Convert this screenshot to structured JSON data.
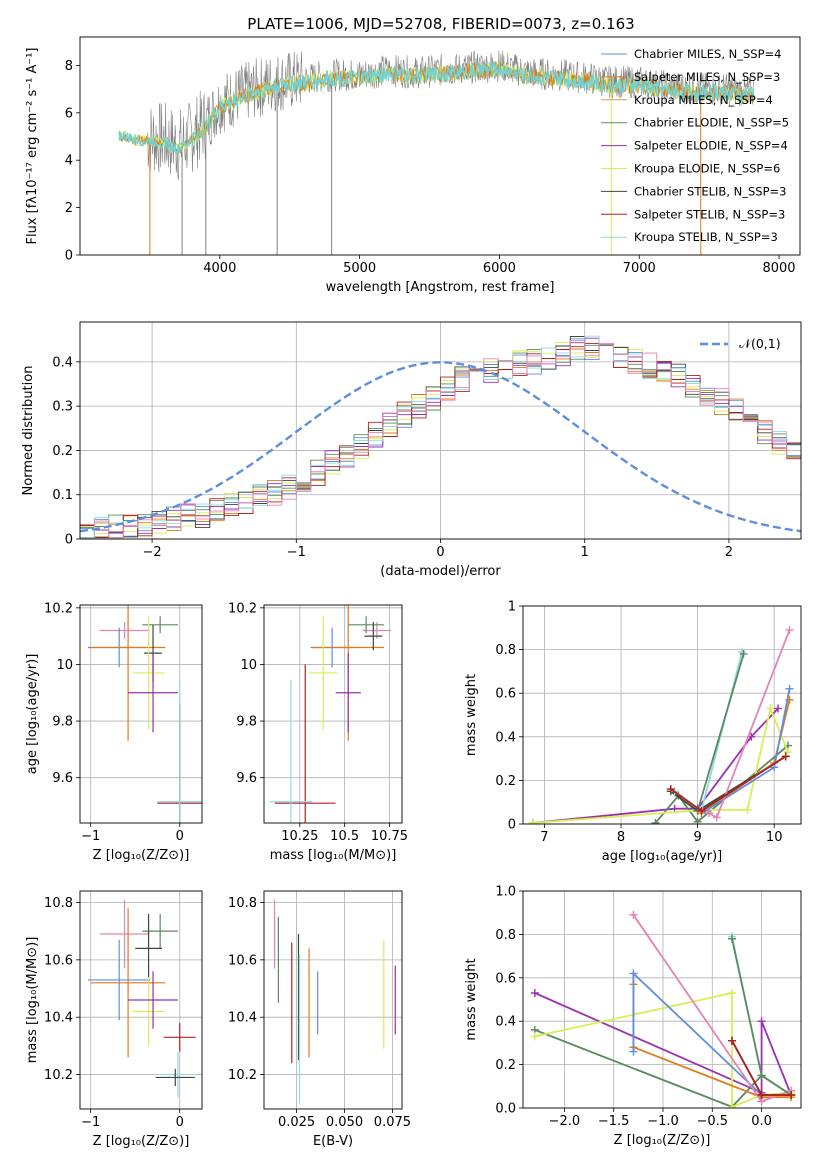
{
  "figure": {
    "title": "PLATE=1006, MJD=52708, FIBERID=0073, z=0.163"
  },
  "colors": {
    "Chabrier MILES": "#5f8fdc",
    "Salpeter MILES": "#e07b1a",
    "Kroupa MILES": "#d89a4a",
    "Chabrier ELODIE": "#5b8a5e",
    "Salpeter ELODIE": "#9b30b0",
    "Kroupa ELODIE": "#d6ef55",
    "Chabrier STELIB": "#3b4a3b",
    "Salpeter STELIB": "#b22020",
    "Kroupa STELIB": "#8fdbe0",
    "data": "#808080",
    "model_main": "#6fd3d8",
    "extra_pink": "#e384b6",
    "normal": "#5f8fdc"
  },
  "chart_data": [
    {
      "id": "spectrum",
      "type": "line",
      "title": "PLATE=1006, MJD=52708, FIBERID=0073, z=0.163",
      "xlabel": "wavelength [Angstrom, rest frame]",
      "ylabel": "Flux [fλ10⁻¹⁷ erg cm⁻² s⁻¹ A⁻¹]",
      "xlim": [
        3000,
        8150
      ],
      "ylim": [
        0,
        9.2
      ],
      "xticks": [
        4000,
        5000,
        6000,
        7000,
        8000
      ],
      "yticks": [
        0,
        2,
        4,
        6,
        8
      ],
      "legend_position": "right",
      "legend": [
        {
          "label": "Chabrier MILES, N_SSP=4",
          "color": "#5f8fdc"
        },
        {
          "label": "Salpeter MILES, N_SSP=3",
          "color": "#e07b1a"
        },
        {
          "label": "Kroupa MILES, N_SSP=4",
          "color": "#d89a4a"
        },
        {
          "label": "Chabrier ELODIE, N_SSP=5",
          "color": "#5b8a5e"
        },
        {
          "label": "Salpeter ELODIE, N_SSP=4",
          "color": "#9b30b0"
        },
        {
          "label": "Kroupa ELODIE, N_SSP=6",
          "color": "#d6ef55"
        },
        {
          "label": "Chabrier STELIB, N_SSP=3",
          "color": "#3b4a3b"
        },
        {
          "label": "Salpeter STELIB, N_SSP=3",
          "color": "#b22020"
        },
        {
          "label": "Kroupa STELIB, N_SSP=3",
          "color": "#8fdbe0"
        }
      ],
      "continuum": {
        "x": [
          3280,
          3400,
          3600,
          3700,
          3800,
          3900,
          4000,
          4200,
          4400,
          4600,
          4800,
          5000,
          5200,
          5400,
          5600,
          5800,
          6000,
          6200,
          6400,
          6600,
          6800,
          7000,
          7200,
          7400,
          7600,
          7800
        ],
        "y": [
          5.2,
          5.0,
          4.9,
          4.6,
          5.0,
          5.6,
          6.4,
          6.9,
          7.3,
          7.4,
          7.6,
          7.6,
          7.8,
          7.7,
          7.8,
          7.9,
          8.0,
          7.7,
          7.6,
          7.5,
          7.3,
          7.3,
          7.1,
          7.0,
          7.0,
          6.9
        ]
      }
    },
    {
      "id": "residuals",
      "type": "bar",
      "xlabel": "(data-model)/error",
      "ylabel": "Normed distribution",
      "xlim": [
        -2.5,
        2.5
      ],
      "ylim": [
        0,
        0.49
      ],
      "xticks": [
        -2,
        -1,
        0,
        1,
        2
      ],
      "yticks": [
        0.0,
        0.1,
        0.2,
        0.3,
        0.4
      ],
      "legend_position": "top-right",
      "legend": [
        {
          "label": "𝒩(0,1)",
          "color": "#5f8fdc",
          "style": "dashed"
        }
      ],
      "bin_width": 0.1,
      "bins_from": -2.5,
      "histogram_levels": [
        0.015,
        0.02,
        0.025,
        0.03,
        0.035,
        0.04,
        0.045,
        0.05,
        0.055,
        0.065,
        0.075,
        0.085,
        0.095,
        0.105,
        0.115,
        0.13,
        0.15,
        0.17,
        0.19,
        0.21,
        0.235,
        0.26,
        0.28,
        0.3,
        0.32,
        0.34,
        0.36,
        0.37,
        0.38,
        0.39,
        0.395,
        0.4,
        0.41,
        0.42,
        0.43,
        0.43,
        0.42,
        0.41,
        0.4,
        0.39,
        0.38,
        0.37,
        0.35,
        0.33,
        0.31,
        0.29,
        0.265,
        0.24,
        0.215,
        0.19
      ],
      "series_colors": [
        "#5f8fdc",
        "#e07b1a",
        "#5b8a5e",
        "#9b30b0",
        "#d6ef55",
        "#3b4a3b",
        "#b22020",
        "#8fdbe0",
        "#e384b6"
      ]
    },
    {
      "id": "age-vs-Z",
      "type": "scatter",
      "xlabel": "Z [log₁₀(Z/Z⊙)]",
      "ylabel": "age  [log₁₀(age/yr)]",
      "xlim": [
        -1.12,
        0.25
      ],
      "ylim": [
        9.44,
        10.21
      ],
      "xticks": [
        -1,
        0
      ],
      "yticks": [
        9.6,
        9.8,
        10.0,
        10.2
      ],
      "points": [
        {
          "x": -0.62,
          "y": 10.12,
          "xerr": 0.28,
          "yerr": 0.03,
          "color": "#e384b6"
        },
        {
          "x": -0.68,
          "y": 10.06,
          "xerr": 0.35,
          "yerr": 0.07,
          "color": "#5f8fdc"
        },
        {
          "x": -0.58,
          "y": 10.06,
          "xerr": 0.42,
          "yerr": 0.33,
          "color": "#e07b1a"
        },
        {
          "x": -0.22,
          "y": 10.14,
          "xerr": 0.2,
          "yerr": 0.03,
          "color": "#5b8a5e"
        },
        {
          "x": -0.3,
          "y": 10.04,
          "xerr": 0.1,
          "yerr": 0.1,
          "color": "#3b4a3b"
        },
        {
          "x": -0.35,
          "y": 9.97,
          "xerr": 0.18,
          "yerr": 0.2,
          "color": "#d6ef55"
        },
        {
          "x": -0.3,
          "y": 9.9,
          "xerr": 0.28,
          "yerr": 0.14,
          "color": "#9b30b0"
        },
        {
          "x": 0.0,
          "y": 9.51,
          "xerr": 0.25,
          "yerr": 0.35,
          "color": "#b22020"
        },
        {
          "x": 0.0,
          "y": 9.515,
          "xerr": 0.25,
          "yerr": 0.43,
          "color": "#8fdbe0"
        }
      ]
    },
    {
      "id": "age-vs-mass",
      "type": "scatter",
      "xlabel": "mass [log₁₀(M/M⊙)]",
      "ylabel": "",
      "xlim": [
        10.05,
        10.82
      ],
      "ylim": [
        9.44,
        10.21
      ],
      "xticks": [
        10.25,
        10.5,
        10.75
      ],
      "yticks": [
        9.6,
        9.8,
        10.0,
        10.2
      ],
      "points": [
        {
          "x": 10.68,
          "y": 10.12,
          "xerr": 0.08,
          "yerr": 0.03,
          "color": "#e384b6"
        },
        {
          "x": 10.43,
          "y": 10.06,
          "xerr": 0.12,
          "yerr": 0.07,
          "color": "#5f8fdc"
        },
        {
          "x": 10.52,
          "y": 10.06,
          "xerr": 0.2,
          "yerr": 0.33,
          "color": "#e07b1a"
        },
        {
          "x": 10.62,
          "y": 10.14,
          "xerr": 0.1,
          "yerr": 0.03,
          "color": "#5b8a5e"
        },
        {
          "x": 10.66,
          "y": 10.1,
          "xerr": 0.05,
          "yerr": 0.05,
          "color": "#3b4a3b"
        },
        {
          "x": 10.38,
          "y": 9.97,
          "xerr": 0.08,
          "yerr": 0.2,
          "color": "#d6ef55"
        },
        {
          "x": 10.52,
          "y": 9.9,
          "xerr": 0.07,
          "yerr": 0.14,
          "color": "#9b30b0"
        },
        {
          "x": 10.28,
          "y": 9.51,
          "xerr": 0.17,
          "yerr": 0.49,
          "color": "#b22020"
        },
        {
          "x": 10.2,
          "y": 9.515,
          "xerr": 0.12,
          "yerr": 0.43,
          "color": "#8fdbe0"
        }
      ]
    },
    {
      "id": "weight-vs-age",
      "type": "line",
      "xlabel": "age  [log₁₀(age/yr)]",
      "ylabel": "mass weight",
      "xlim": [
        6.72,
        10.35
      ],
      "ylim": [
        0.0,
        1.0
      ],
      "xticks": [
        7,
        8,
        9,
        10
      ],
      "yticks": [
        0.0,
        0.2,
        0.4,
        0.6,
        0.8,
        1.0
      ],
      "series": [
        {
          "color": "#9b30b0",
          "x": [
            6.85,
            8.7,
            9.0,
            9.7,
            10.05
          ],
          "y": [
            0.005,
            0.07,
            0.07,
            0.4,
            0.53
          ]
        },
        {
          "color": "#5b8a5e",
          "x": [
            8.45,
            8.75,
            9.0,
            10.18
          ],
          "y": [
            0.005,
            0.13,
            0.01,
            0.36
          ]
        },
        {
          "color": "#d6ef55",
          "x": [
            6.85,
            9.1,
            9.65,
            9.95,
            10.18
          ],
          "y": [
            0.005,
            0.065,
            0.065,
            0.53,
            0.33
          ]
        },
        {
          "color": "#3b4a3b",
          "x": [
            8.65,
            9.0,
            10.15
          ],
          "y": [
            0.15,
            0.06,
            0.31
          ]
        },
        {
          "color": "#8fdbe0",
          "x": [
            8.7,
            9.05,
            9.58
          ],
          "y": [
            0.15,
            0.06,
            0.79
          ]
        },
        {
          "color": "#5b8a5e",
          "x": [
            9.0,
            9.6
          ],
          "y": [
            0.06,
            0.78
          ]
        },
        {
          "color": "#e07b1a",
          "x": [
            9.05,
            10.0,
            10.2
          ],
          "y": [
            0.05,
            0.28,
            0.57
          ]
        },
        {
          "color": "#5f8fdc",
          "x": [
            9.1,
            10.0,
            10.2
          ],
          "y": [
            0.06,
            0.26,
            0.62
          ]
        },
        {
          "color": "#e384b6",
          "x": [
            9.15,
            9.25,
            10.2
          ],
          "y": [
            0.05,
            0.03,
            0.89
          ]
        },
        {
          "color": "#b22020",
          "x": [
            8.65,
            9.05,
            10.15
          ],
          "y": [
            0.16,
            0.06,
            0.31
          ]
        }
      ]
    },
    {
      "id": "mass-vs-Z",
      "type": "scatter",
      "xlabel": "Z [log₁₀(Z/Z⊙)]",
      "ylabel": "mass [log₁₀(M/M⊙)]",
      "xlim": [
        -1.12,
        0.25
      ],
      "ylim": [
        10.08,
        10.84
      ],
      "xticks": [
        -1,
        0
      ],
      "yticks": [
        10.2,
        10.4,
        10.6,
        10.8
      ],
      "points": [
        {
          "x": -0.62,
          "y": 10.69,
          "xerr": 0.28,
          "yerr": 0.12,
          "color": "#e384b6"
        },
        {
          "x": -0.68,
          "y": 10.53,
          "xerr": 0.35,
          "yerr": 0.14,
          "color": "#5f8fdc"
        },
        {
          "x": -0.58,
          "y": 10.52,
          "xerr": 0.42,
          "yerr": 0.26,
          "color": "#e07b1a"
        },
        {
          "x": -0.22,
          "y": 10.7,
          "xerr": 0.2,
          "yerr": 0.06,
          "color": "#5b8a5e"
        },
        {
          "x": -0.35,
          "y": 10.64,
          "xerr": 0.15,
          "yerr": 0.12,
          "color": "#3b4a3b"
        },
        {
          "x": -0.35,
          "y": 10.42,
          "xerr": 0.18,
          "yerr": 0.12,
          "color": "#d6ef55"
        },
        {
          "x": -0.3,
          "y": 10.46,
          "xerr": 0.28,
          "yerr": 0.1,
          "color": "#9b30b0"
        },
        {
          "x": 0.0,
          "y": 10.33,
          "xerr": 0.18,
          "yerr": 0.05,
          "color": "#b22020"
        },
        {
          "x": -0.02,
          "y": 10.2,
          "xerr": 0.22,
          "yerr": 0.08,
          "color": "#8fdbe0"
        },
        {
          "x": -0.05,
          "y": 10.19,
          "xerr": 0.22,
          "yerr": 0.03,
          "color": "#3b4a3b"
        }
      ]
    },
    {
      "id": "mass-vs-EBV",
      "type": "scatter",
      "xlabel": "E(B-V)",
      "ylabel": "",
      "xlim": [
        0.008,
        0.08
      ],
      "ylim": [
        10.08,
        10.84
      ],
      "xticks": [
        0.025,
        0.05,
        0.075
      ],
      "yticks": [
        10.2,
        10.4,
        10.6,
        10.8
      ],
      "points": [
        {
          "x": 0.0135,
          "y": 10.69,
          "xerr": 0.0,
          "yerr": 0.12,
          "color": "#e384b6"
        },
        {
          "x": 0.0155,
          "y": 10.6,
          "xerr": 0.0,
          "yerr": 0.15,
          "color": "#5b8a5e"
        },
        {
          "x": 0.0225,
          "y": 10.45,
          "xerr": 0.0,
          "yerr": 0.21,
          "color": "#b22020"
        },
        {
          "x": 0.026,
          "y": 10.47,
          "xerr": 0.0,
          "yerr": 0.22,
          "color": "#3b4a3b"
        },
        {
          "x": 0.0265,
          "y": 10.36,
          "xerr": 0.0,
          "yerr": 0.26,
          "color": "#8fdbe0"
        },
        {
          "x": 0.0315,
          "y": 10.45,
          "xerr": 0.0,
          "yerr": 0.19,
          "color": "#e07b1a"
        },
        {
          "x": 0.036,
          "y": 10.45,
          "xerr": 0.0,
          "yerr": 0.11,
          "color": "#5f8fdc"
        },
        {
          "x": 0.0705,
          "y": 10.48,
          "xerr": 0.0,
          "yerr": 0.19,
          "color": "#d6ef55"
        },
        {
          "x": 0.0765,
          "y": 10.46,
          "xerr": 0.0,
          "yerr": 0.12,
          "color": "#9b30b0"
        }
      ]
    },
    {
      "id": "weight-vs-Z",
      "type": "line",
      "xlabel": "Z [log₁₀(Z/Z⊙)]",
      "ylabel": "mass weight",
      "xlim": [
        -2.42,
        0.4
      ],
      "ylim": [
        0.0,
        1.0
      ],
      "xticks": [
        -2.0,
        -1.5,
        -1.0,
        -0.5,
        0.0
      ],
      "yticks": [
        0.0,
        0.2,
        0.4,
        0.6,
        0.8,
        1.0
      ],
      "series": [
        {
          "color": "#9b30b0",
          "x": [
            -2.3,
            0.0,
            0.0,
            0.3
          ],
          "y": [
            0.53,
            0.07,
            0.4,
            0.06
          ]
        },
        {
          "color": "#5b8a5e",
          "x": [
            -2.3,
            -0.3,
            0.0,
            0.3
          ],
          "y": [
            0.36,
            0.005,
            0.15,
            0.06
          ]
        },
        {
          "color": "#d6ef55",
          "x": [
            -2.3,
            -0.3,
            -0.3,
            0.0,
            0.3
          ],
          "y": [
            0.33,
            0.53,
            0.005,
            0.06,
            0.07
          ]
        },
        {
          "color": "#e07b1a",
          "x": [
            -1.3,
            -1.3,
            0.0,
            0.3
          ],
          "y": [
            0.57,
            0.28,
            0.05,
            0.05
          ]
        },
        {
          "color": "#5f8fdc",
          "x": [
            -1.3,
            -1.3,
            0.0,
            0.3
          ],
          "y": [
            0.26,
            0.62,
            0.06,
            0.06
          ]
        },
        {
          "color": "#e384b6",
          "x": [
            -1.3,
            0.0,
            0.3
          ],
          "y": [
            0.89,
            0.03,
            0.08
          ]
        },
        {
          "color": "#8fdbe0",
          "x": [
            -0.3,
            -0.3,
            0.0,
            0.3
          ],
          "y": [
            0.79,
            0.79,
            0.15,
            0.06
          ]
        },
        {
          "color": "#5b8a5e",
          "x": [
            -0.3,
            0.0,
            0.3
          ],
          "y": [
            0.78,
            0.15,
            0.06
          ]
        },
        {
          "color": "#3b4a3b",
          "x": [
            -0.3,
            0.0,
            0.3
          ],
          "y": [
            0.31,
            0.06,
            0.06
          ]
        },
        {
          "color": "#b22020",
          "x": [
            -0.3,
            0.0,
            0.3
          ],
          "y": [
            0.31,
            0.06,
            0.06
          ]
        }
      ]
    }
  ]
}
